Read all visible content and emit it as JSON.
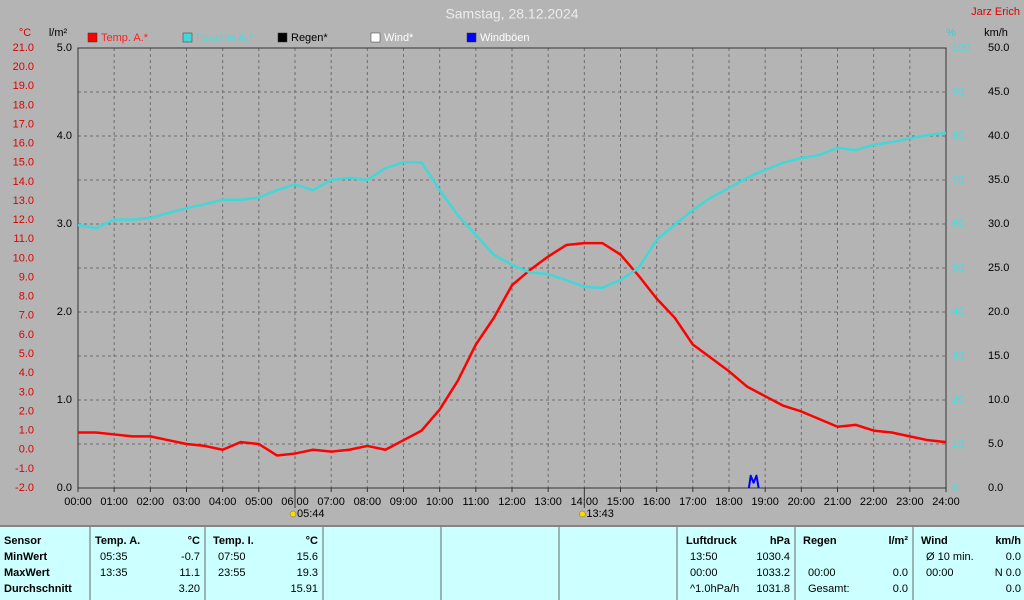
{
  "chart_data": {
    "type": "line",
    "title": "Samstag, 28.12.2024",
    "author": "Jarz Erich",
    "y_label": "°C",
    "y3_label": "l/m²",
    "y2_label": "%",
    "y4_label": "km/h",
    "x": [
      0,
      0.5,
      1,
      1.5,
      2,
      2.5,
      3,
      3.5,
      4,
      4.5,
      5,
      5.5,
      6,
      6.5,
      7,
      7.5,
      8,
      8.5,
      9,
      9.5,
      10,
      10.5,
      11,
      11.5,
      12,
      12.5,
      13,
      13.5,
      14,
      14.5,
      15,
      15.5,
      16,
      16.5,
      17,
      17.5,
      18,
      18.5,
      19,
      19.5,
      20,
      20.5,
      21,
      21.5,
      22,
      22.5,
      23,
      23.5,
      24
    ],
    "xlim": [
      0,
      24
    ],
    "xticks": [
      {
        "value": 0,
        "label": "00:00"
      },
      {
        "value": 1,
        "label": "01:00"
      },
      {
        "value": 2,
        "label": "02:00"
      },
      {
        "value": 3,
        "label": "03:00"
      },
      {
        "value": 4,
        "label": "04:00"
      },
      {
        "value": 5,
        "label": "05:00"
      },
      {
        "value": 6,
        "label": "06:00"
      },
      {
        "value": 7,
        "label": "07:00"
      },
      {
        "value": 8,
        "label": "08:00"
      },
      {
        "value": 9,
        "label": "09:00"
      },
      {
        "value": 10,
        "label": "10:00"
      },
      {
        "value": 11,
        "label": "11:00"
      },
      {
        "value": 12,
        "label": "12:00"
      },
      {
        "value": 13,
        "label": "13:00"
      },
      {
        "value": 14,
        "label": "14:00"
      },
      {
        "value": 15,
        "label": "15:00"
      },
      {
        "value": 16,
        "label": "16:00"
      },
      {
        "value": 17,
        "label": "17:00"
      },
      {
        "value": 18,
        "label": "18:00"
      },
      {
        "value": 19,
        "label": "19:00"
      },
      {
        "value": 20,
        "label": "20:00"
      },
      {
        "value": 21,
        "label": "21:00"
      },
      {
        "value": 22,
        "label": "22:00"
      },
      {
        "value": 23,
        "label": "23:00"
      },
      {
        "value": 24,
        "label": "24:00"
      }
    ],
    "ylim": [
      -2,
      21
    ],
    "yticks": [
      {
        "value": -2,
        "label": "-2.0"
      },
      {
        "value": -1,
        "label": "-1.0"
      },
      {
        "value": 0,
        "label": "0.0"
      },
      {
        "value": 1,
        "label": "1.0"
      },
      {
        "value": 2,
        "label": "2.0"
      },
      {
        "value": 3,
        "label": "3.0"
      },
      {
        "value": 4,
        "label": "4.0"
      },
      {
        "value": 5,
        "label": "5.0"
      },
      {
        "value": 6,
        "label": "6.0"
      },
      {
        "value": 7,
        "label": "7.0"
      },
      {
        "value": 8,
        "label": "8.0"
      },
      {
        "value": 9,
        "label": "9.0"
      },
      {
        "value": 10,
        "label": "10.0"
      },
      {
        "value": 11,
        "label": "11.0"
      },
      {
        "value": 12,
        "label": "12.0"
      },
      {
        "value": 13,
        "label": "13.0"
      },
      {
        "value": 14,
        "label": "14.0"
      },
      {
        "value": 15,
        "label": "15.0"
      },
      {
        "value": 16,
        "label": "16.0"
      },
      {
        "value": 17,
        "label": "17.0"
      },
      {
        "value": 18,
        "label": "18.0"
      },
      {
        "value": 19,
        "label": "19.0"
      },
      {
        "value": 20,
        "label": "20.0"
      },
      {
        "value": 21,
        "label": "21.0"
      }
    ],
    "y3lim": [
      0,
      5
    ],
    "y3ticks": [
      {
        "value": 0,
        "label": "0.0"
      },
      {
        "value": 1,
        "label": "1.0"
      },
      {
        "value": 2,
        "label": "2.0"
      },
      {
        "value": 3,
        "label": "3.0"
      },
      {
        "value": 4,
        "label": "4.0"
      },
      {
        "value": 5,
        "label": "5.0"
      }
    ],
    "y2lim": [
      0,
      100
    ],
    "y2ticks": [
      0,
      10,
      20,
      30,
      40,
      50,
      60,
      70,
      80,
      90,
      100
    ],
    "y4lim": [
      0,
      50
    ],
    "y4ticks": [
      {
        "value": 0,
        "label": "0.0"
      },
      {
        "value": 5,
        "label": "5.0"
      },
      {
        "value": 10,
        "label": "10.0"
      },
      {
        "value": 15,
        "label": "15.0"
      },
      {
        "value": 20,
        "label": "20.0"
      },
      {
        "value": 25,
        "label": "25.0"
      },
      {
        "value": 30,
        "label": "30.0"
      },
      {
        "value": 35,
        "label": "35.0"
      },
      {
        "value": 40,
        "label": "40.0"
      },
      {
        "value": 45,
        "label": "45.0"
      },
      {
        "value": 50,
        "label": "50.0"
      }
    ],
    "grid": true,
    "series": [
      {
        "name": "Temp. A.*",
        "color": "#ff0000",
        "axis": "y",
        "values": [
          0.9,
          0.9,
          0.8,
          0.7,
          0.7,
          0.5,
          0.3,
          0.2,
          0.0,
          0.4,
          0.3,
          -0.3,
          -0.2,
          0.0,
          -0.1,
          0.0,
          0.2,
          0.0,
          0.5,
          1.0,
          2.1,
          3.6,
          5.5,
          6.9,
          8.6,
          9.4,
          10.1,
          10.7,
          10.8,
          10.8,
          10.2,
          9.1,
          7.9,
          6.9,
          5.5,
          4.8,
          4.1,
          3.3,
          2.8,
          2.3,
          2.0,
          1.6,
          1.2,
          1.3,
          1.0,
          0.9,
          0.7,
          0.5,
          0.4
        ]
      },
      {
        "name": "Feuchte A.*",
        "color": "#40d8d8",
        "axis": "y2",
        "values": [
          59.8,
          59,
          61,
          61,
          61.4,
          62.5,
          63.6,
          64.5,
          65.5,
          65.5,
          66,
          67.7,
          69,
          67.7,
          70,
          70.5,
          70,
          72.7,
          74,
          74,
          67.7,
          62,
          57.5,
          53,
          50.7,
          49,
          48.6,
          47.3,
          45.7,
          45.5,
          47.3,
          50,
          56.4,
          59.8,
          63.2,
          66,
          68.2,
          70.5,
          72.3,
          73.9,
          75,
          75.7,
          77.3,
          76.8,
          78,
          78.6,
          79.5,
          80.2,
          80.7
        ]
      },
      {
        "name": "Regen*",
        "color": "#000000",
        "axis": "y3"
      },
      {
        "name": "Wind*",
        "color": "#ffffff",
        "axis": "y4"
      },
      {
        "name": "Windböen",
        "color": "#0000ff",
        "axis": "y4",
        "x": [
          18.55,
          18.6,
          18.68,
          18.76,
          18.82
        ],
        "values": [
          0,
          1.4,
          0.6,
          1.4,
          0
        ]
      }
    ],
    "annotations": [
      {
        "label": "05:44",
        "x": 6
      },
      {
        "label": "13:43",
        "x": 14
      }
    ]
  },
  "table": {
    "header": [
      "Sensor",
      "Temp. A.",
      "°C",
      "Temp. I.",
      "°C",
      "Luftdruck",
      "hPa",
      "Regen",
      "l/m²",
      "Wind",
      "km/h"
    ],
    "rows": [
      [
        "MinWert",
        "05:35",
        "-0.7",
        "07:50",
        "15.6",
        "13:50",
        "1030.4",
        null,
        null,
        "Ø 10 min.",
        "0.0"
      ],
      [
        "MaxWert",
        "13:35",
        "11.1",
        "23:55",
        "19.3",
        "00:00",
        "1033.2",
        "00:00",
        "0.0",
        "00:00",
        "N 0.0"
      ],
      [
        "Durchschnitt",
        null,
        "3.20",
        null,
        "15.91",
        "^1.0hPa/h",
        "1031.8",
        "Gesamt:",
        "0.0",
        null,
        "0.0"
      ]
    ]
  }
}
